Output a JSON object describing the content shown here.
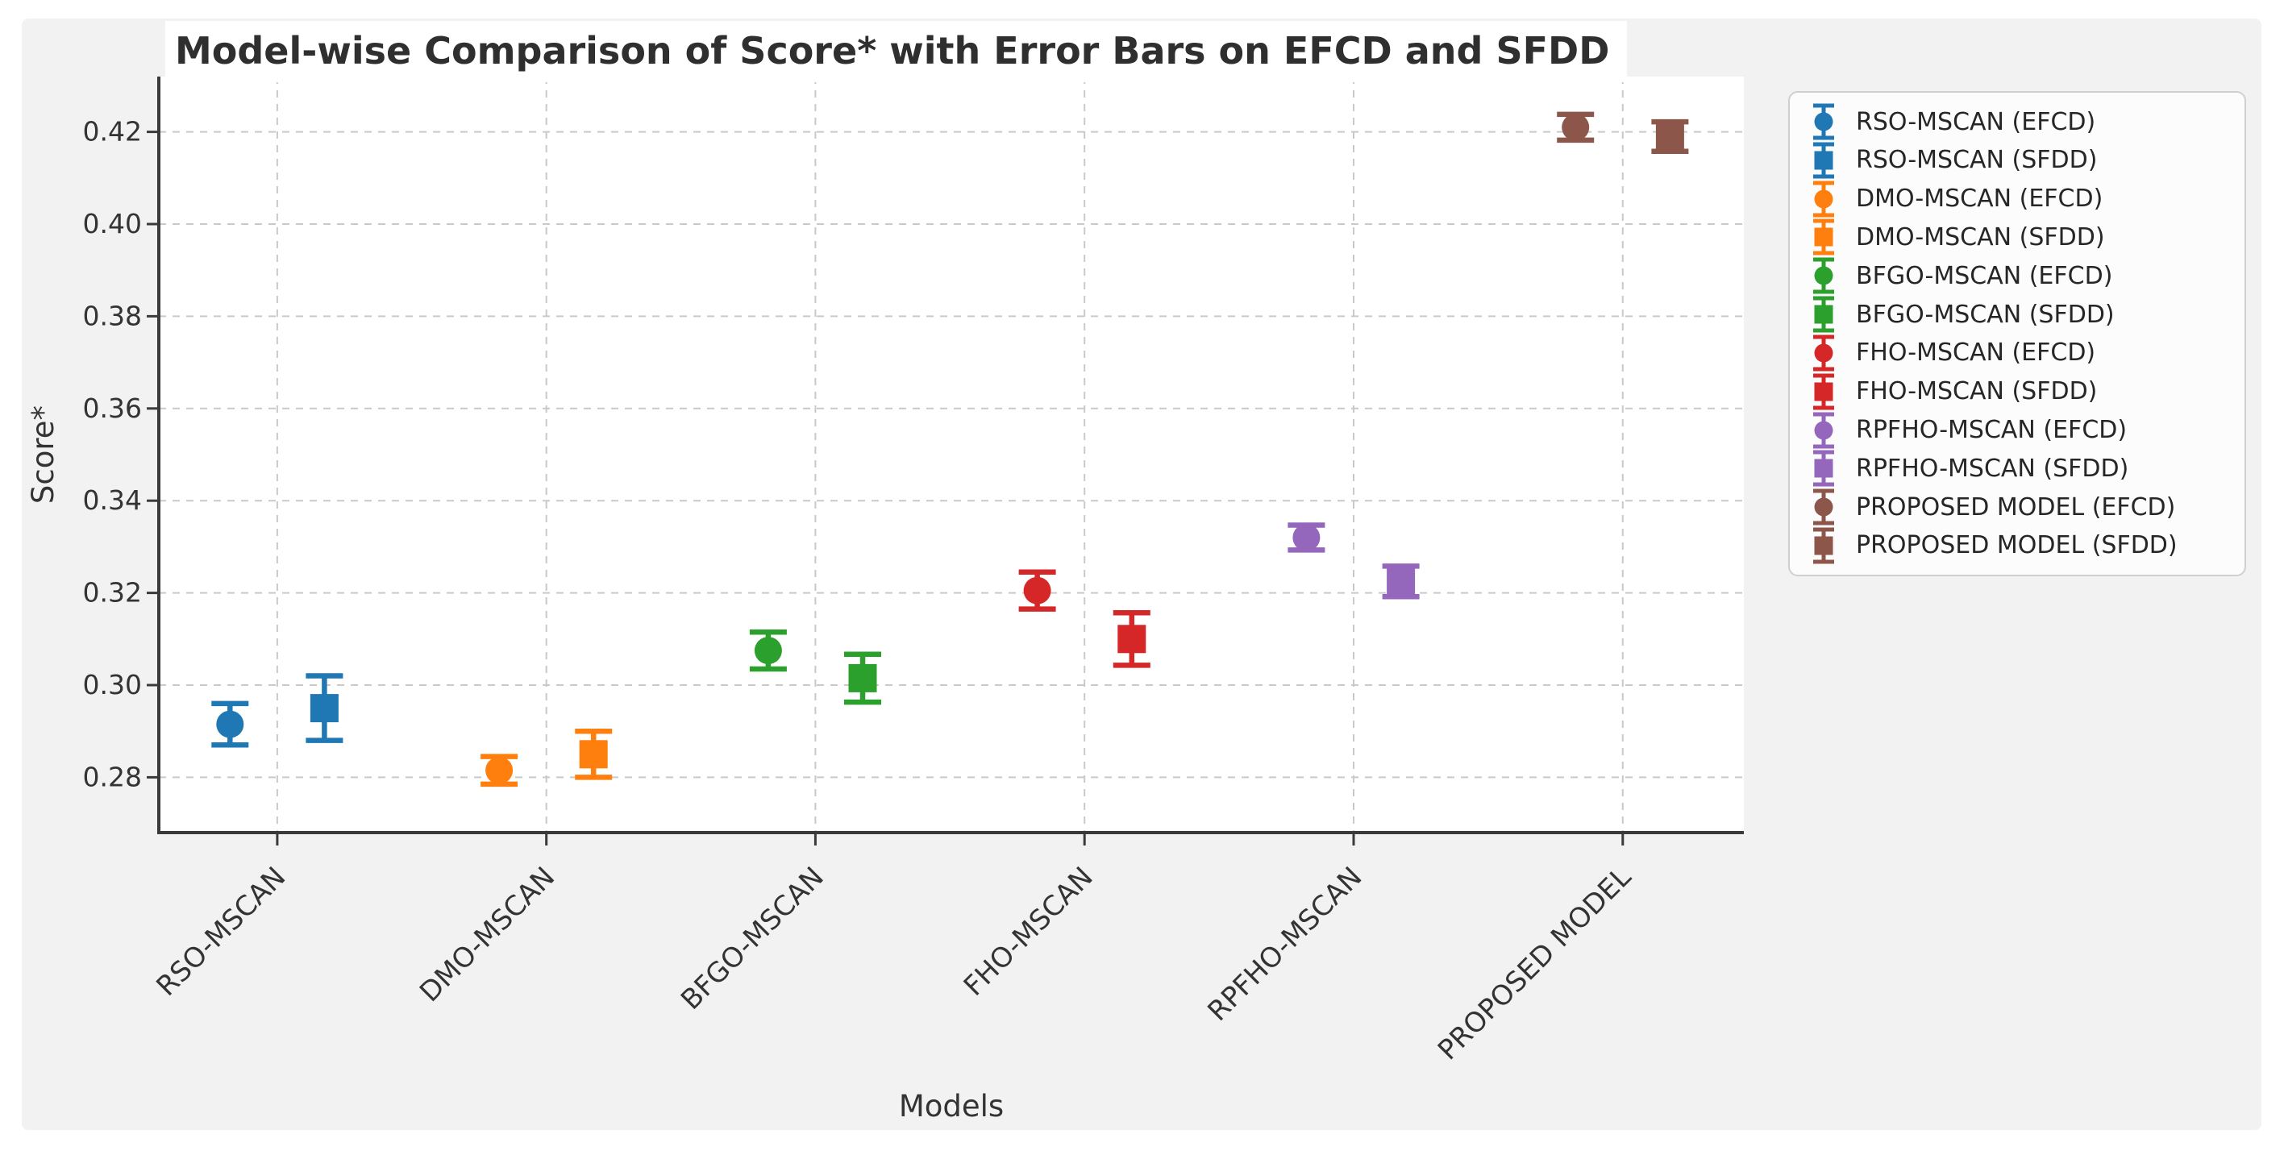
{
  "chart_data": {
    "type": "scatter",
    "error_bars": true,
    "title": "Model-wise Comparison of Score* with Error Bars on EFCD and SFDD",
    "xlabel": "Models",
    "ylabel": "Score*",
    "categories": [
      "RSO-MSCAN",
      "DMO-MSCAN",
      "BFGO-MSCAN",
      "FHO-MSCAN",
      "RPFHO-MSCAN",
      "PROPOSED MODEL"
    ],
    "category_colors": [
      "#1f77b4",
      "#ff7f0e",
      "#2ca02c",
      "#d62728",
      "#9467bd",
      "#8c564b"
    ],
    "series": [
      {
        "name": "EFCD",
        "marker": "circle",
        "values": [
          0.2915,
          0.2815,
          0.3075,
          0.3205,
          0.332,
          0.421
        ],
        "errors": [
          0.0045,
          0.003,
          0.004,
          0.004,
          0.0027,
          0.0028
        ]
      },
      {
        "name": "SFDD",
        "marker": "square",
        "values": [
          0.295,
          0.285,
          0.3015,
          0.31,
          0.3225,
          0.419
        ],
        "errors": [
          0.007,
          0.005,
          0.0052,
          0.0057,
          0.0033,
          0.0032
        ]
      }
    ],
    "legend_entries": [
      "RSO-MSCAN (EFCD)",
      "RSO-MSCAN (SFDD)",
      "DMO-MSCAN (EFCD)",
      "DMO-MSCAN (SFDD)",
      "BFGO-MSCAN (EFCD)",
      "BFGO-MSCAN (SFDD)",
      "FHO-MSCAN (EFCD)",
      "FHO-MSCAN (SFDD)",
      "RPFHO-MSCAN (EFCD)",
      "RPFHO-MSCAN (SFDD)",
      "PROPOSED MODEL (EFCD)",
      "PROPOSED MODEL (SFDD)"
    ],
    "legend_position": "outside-right-top",
    "ylim": [
      0.268,
      0.432
    ],
    "yticks": [
      0.28,
      0.3,
      0.32,
      0.34,
      0.36,
      0.38,
      0.4,
      0.42
    ],
    "grid": true,
    "colors": {
      "figure_background": "#f2f2f2",
      "axes_background": "#ffffff",
      "grid_line": "#c9c9c9",
      "spine": "#3a3a3a",
      "text": "#333333"
    }
  }
}
